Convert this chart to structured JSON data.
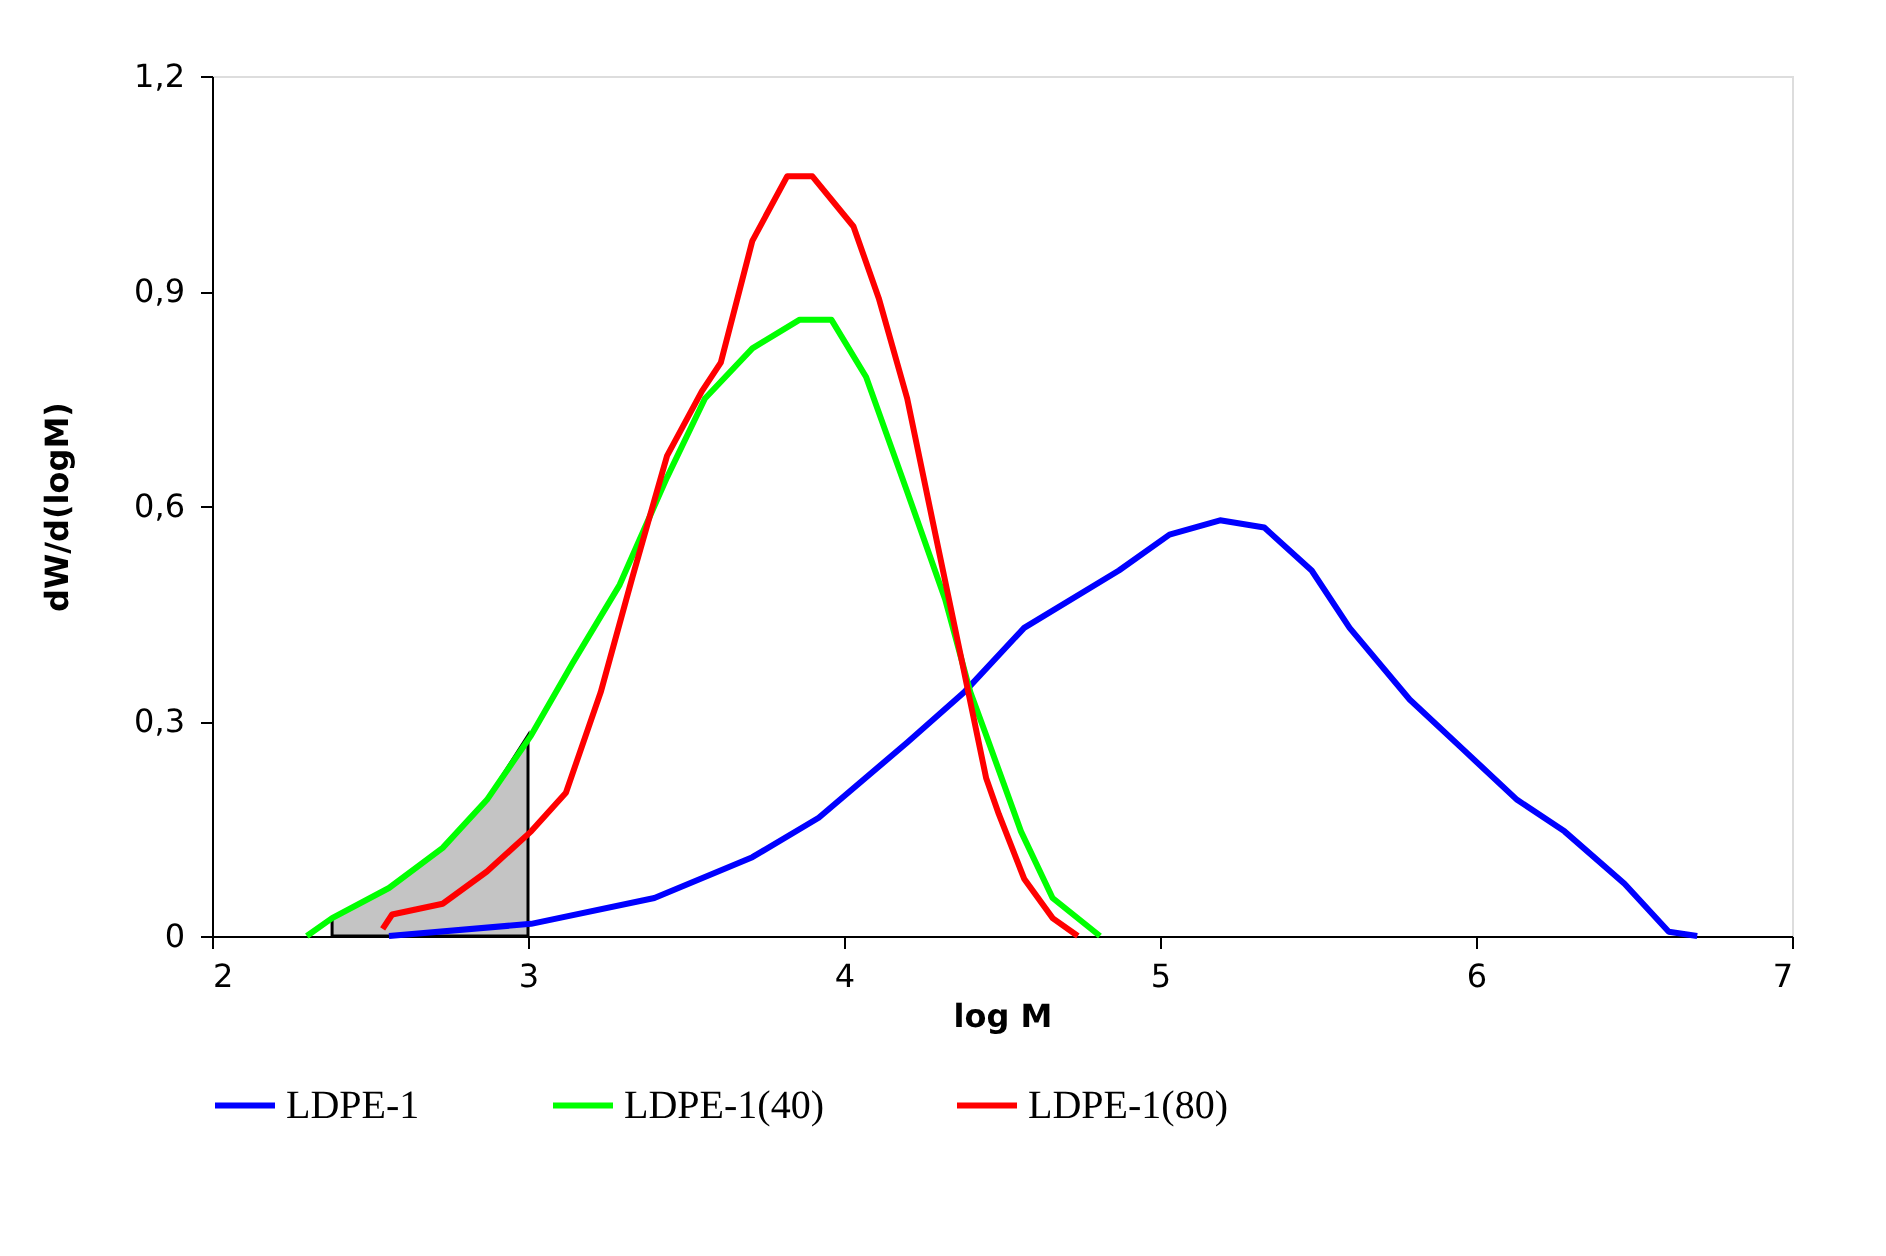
{
  "chart_data": {
    "type": "line",
    "xlabel": "log M",
    "ylabel": "dW/d(logM)",
    "xlim": [
      2,
      7
    ],
    "xticks": [
      2,
      3,
      4,
      5,
      6,
      7
    ],
    "ylim": [
      0,
      1.2
    ],
    "yticks": [
      {
        "value": 0,
        "label": "0"
      },
      {
        "value": 0.3,
        "label": "0,3"
      },
      {
        "value": 0.6,
        "label": "0,6"
      },
      {
        "value": 0.9,
        "label": "0,9"
      },
      {
        "value": 1.2,
        "label": "1,2"
      }
    ],
    "grid": false,
    "legend": "bottom",
    "marker": "none",
    "line_style": "solid",
    "series": [
      {
        "name": "LDPE-1",
        "color": "#0000ff",
        "x": [
          2.56,
          3.01,
          3.4,
          3.71,
          3.92,
          4.2,
          4.38,
          4.57,
          4.87,
          5.03,
          5.19,
          5.33,
          5.48,
          5.6,
          5.79,
          5.96,
          6.13,
          6.28,
          6.47,
          6.61,
          6.7
        ],
        "values": [
          0,
          0.017,
          0.053,
          0.11,
          0.165,
          0.27,
          0.34,
          0.43,
          0.51,
          0.56,
          0.58,
          0.57,
          0.51,
          0.43,
          0.33,
          0.26,
          0.19,
          0.146,
          0.073,
          0.006,
          0
        ]
      },
      {
        "name": "LDPE-1(40)",
        "color": "#00ff00",
        "x": [
          2.3,
          2.38,
          2.56,
          2.73,
          2.87,
          3.01,
          3.14,
          3.29,
          3.44,
          3.56,
          3.71,
          3.86,
          3.96,
          4.07,
          4.2,
          4.32,
          4.4,
          4.45,
          4.56,
          4.66,
          4.81
        ],
        "values": [
          0,
          0.025,
          0.067,
          0.123,
          0.19,
          0.28,
          0.38,
          0.49,
          0.64,
          0.75,
          0.82,
          0.86,
          0.86,
          0.78,
          0.62,
          0.47,
          0.34,
          0.28,
          0.146,
          0.053,
          0
        ]
      },
      {
        "name": "LDPE-1(80)",
        "color": "#ff0000",
        "x": [
          2.54,
          2.57,
          2.73,
          2.87,
          3.01,
          3.12,
          3.23,
          3.33,
          3.44,
          3.55,
          3.61,
          3.71,
          3.82,
          3.9,
          4.03,
          4.11,
          4.2,
          4.28,
          4.37,
          4.45,
          4.49,
          4.57,
          4.66,
          4.74
        ],
        "values": [
          0.01,
          0.03,
          0.045,
          0.09,
          0.146,
          0.2,
          0.34,
          0.5,
          0.67,
          0.76,
          0.8,
          0.97,
          1.06,
          1.06,
          0.99,
          0.89,
          0.75,
          0.58,
          0.39,
          0.22,
          0.17,
          0.08,
          0.025,
          0
        ]
      },
      {
        "type": "area",
        "color": "#555555",
        "x": [
          2.38,
          2.56,
          2.73,
          2.87,
          3.0
        ],
        "values": [
          0.025,
          0.067,
          0.123,
          0.19,
          0.28
        ]
      }
    ]
  }
}
